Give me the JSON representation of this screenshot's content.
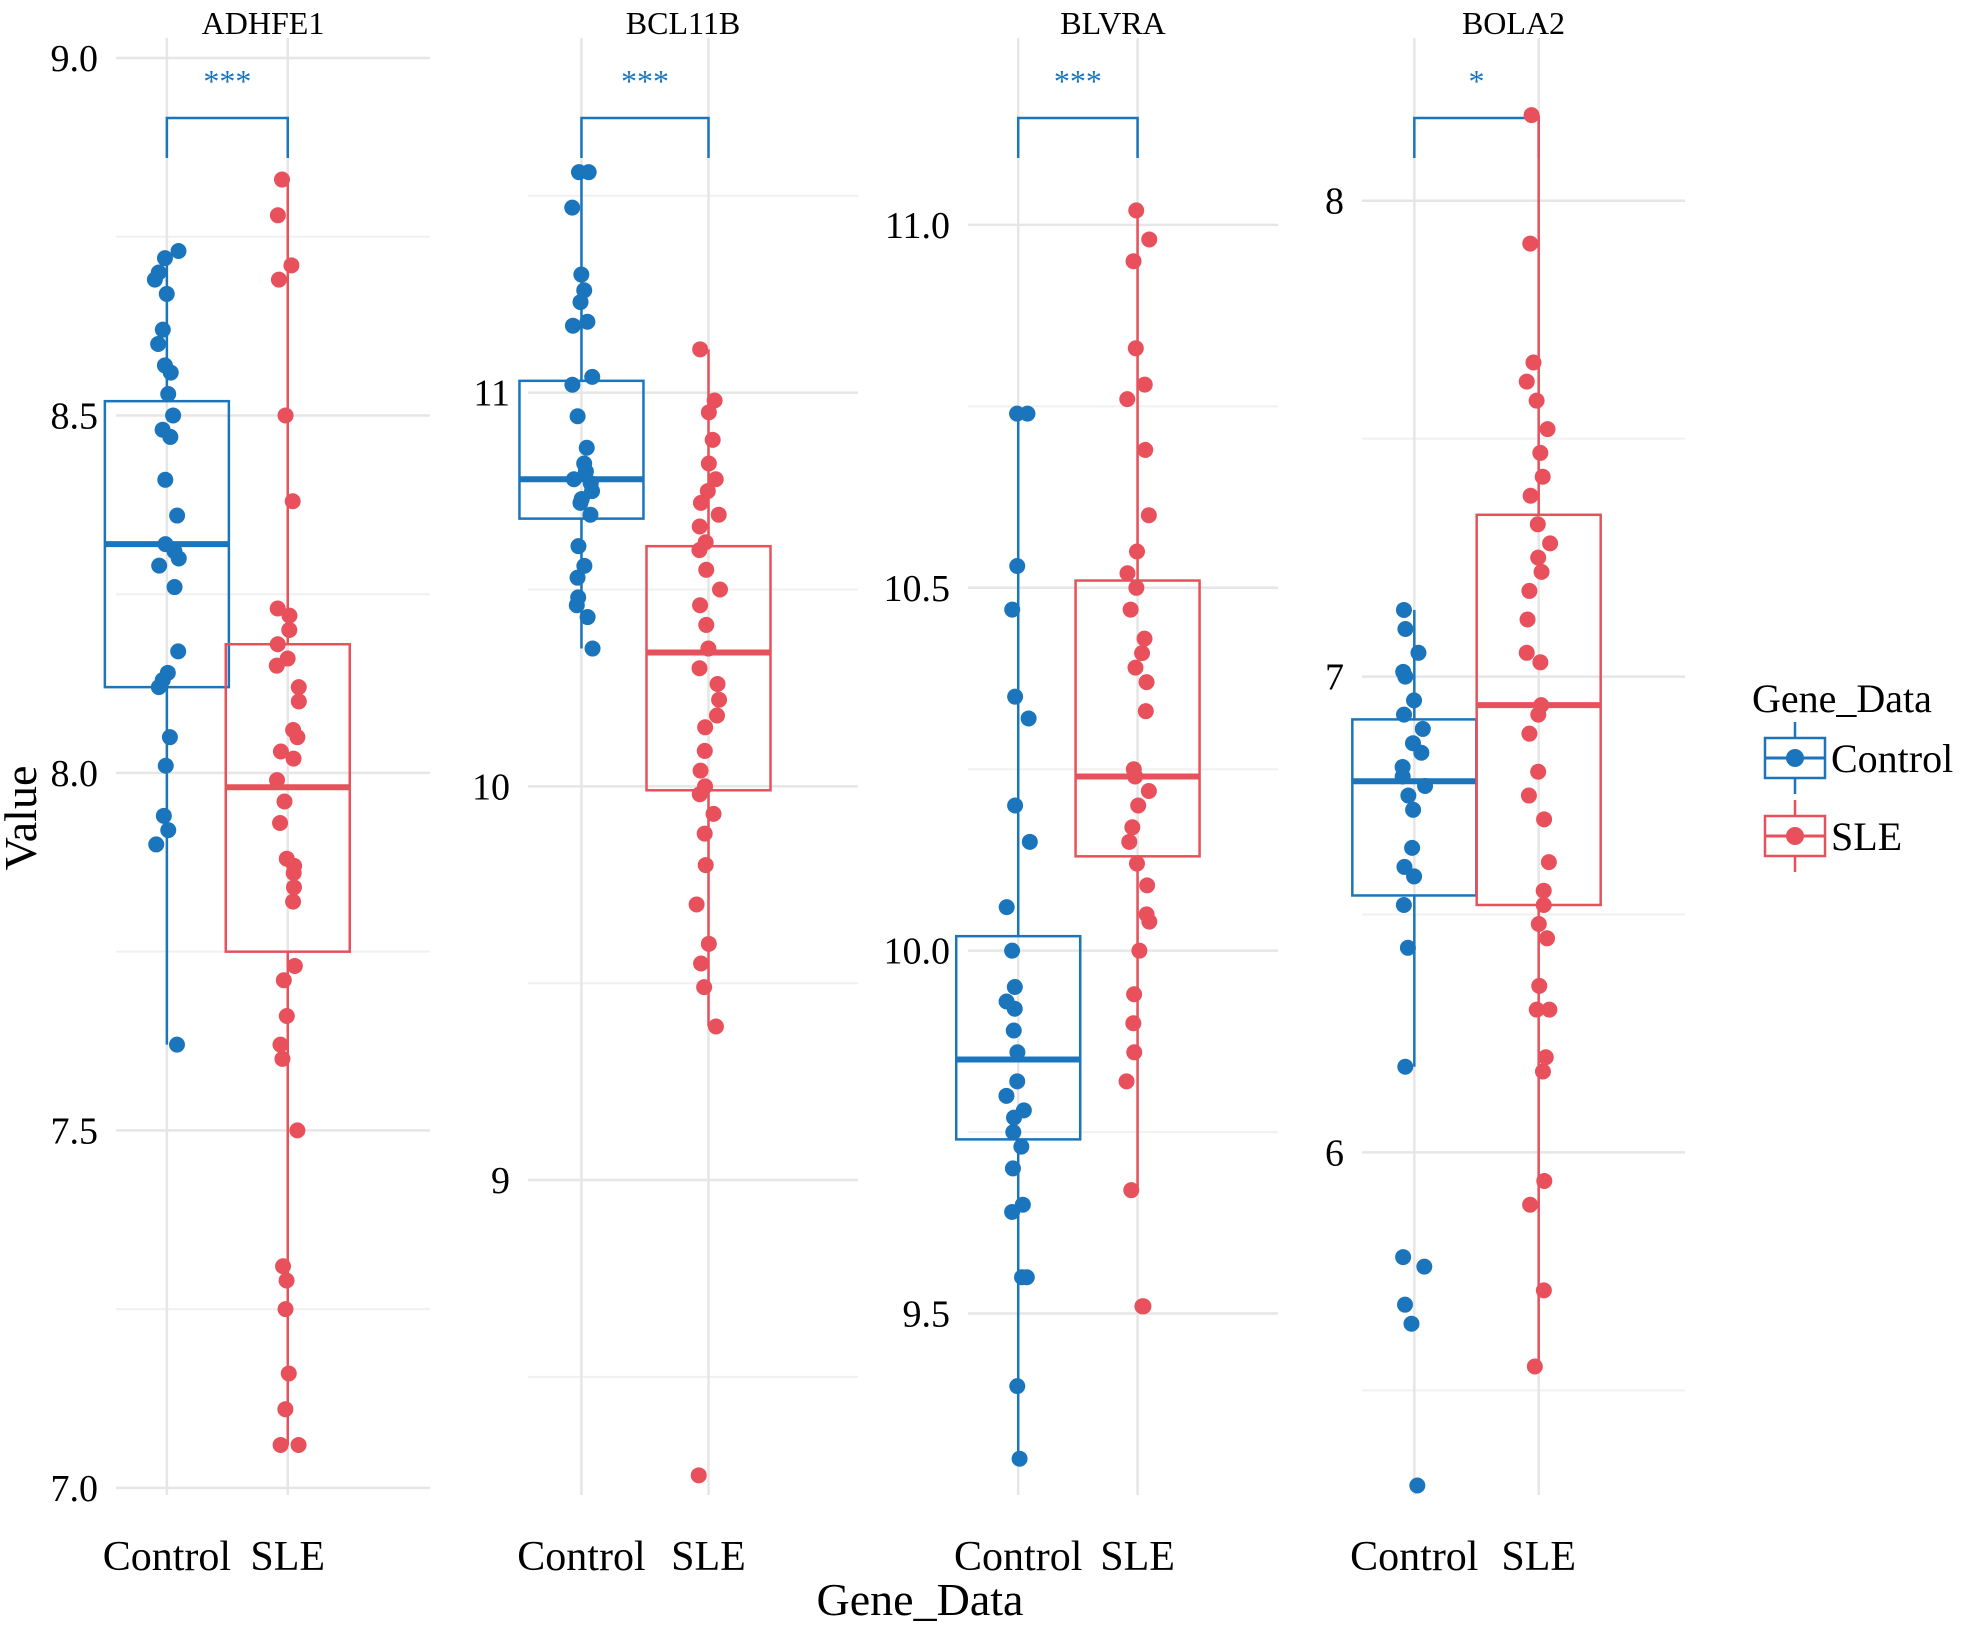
{
  "chart_data": {
    "type": "box",
    "xlabel": "Gene_Data",
    "ylabel": "Value",
    "legend": {
      "title": "Gene_Data",
      "position": "right",
      "entries": [
        {
          "name": "Control",
          "color": "#1b75bc"
        },
        {
          "name": "SLE",
          "color": "#e8505b"
        }
      ]
    },
    "categories": [
      "Control",
      "SLE"
    ],
    "colors": {
      "Control": "#1b75bc",
      "SLE": "#e8505b"
    },
    "grid": true,
    "panels": [
      {
        "title": "ADHFE1",
        "significance": "***",
        "ylim": [
          6.99,
          9.0
        ],
        "yticks": [
          7.0,
          7.5,
          8.0,
          8.5,
          9.0
        ],
        "ytick_labels": [
          "7.0",
          "7.5",
          "8.0",
          "8.5",
          "9.0"
        ],
        "groups": [
          {
            "name": "Control",
            "q1": 8.12,
            "median": 8.32,
            "q3": 8.52,
            "whisker_low": 7.62,
            "whisker_high": 8.73,
            "points": [
              7.62,
              7.9,
              7.92,
              7.94,
              8.01,
              8.05,
              8.12,
              8.13,
              8.14,
              8.17,
              8.26,
              8.29,
              8.3,
              8.31,
              8.32,
              8.36,
              8.41,
              8.47,
              8.48,
              8.5,
              8.53,
              8.56,
              8.57,
              8.6,
              8.62,
              8.67,
              8.69,
              8.7,
              8.72,
              8.73
            ]
          },
          {
            "name": "SLE",
            "q1": 7.75,
            "median": 7.98,
            "q3": 8.18,
            "whisker_low": 7.06,
            "whisker_high": 8.83,
            "points": [
              7.06,
              7.06,
              7.11,
              7.16,
              7.25,
              7.29,
              7.31,
              7.5,
              7.6,
              7.62,
              7.66,
              7.71,
              7.73,
              7.82,
              7.84,
              7.86,
              7.87,
              7.88,
              7.93,
              7.96,
              7.99,
              8.02,
              8.03,
              8.05,
              8.06,
              8.1,
              8.12,
              8.15,
              8.16,
              8.18,
              8.2,
              8.22,
              8.23,
              8.38,
              8.5,
              8.69,
              8.71,
              8.78,
              8.83
            ]
          }
        ]
      },
      {
        "title": "BCL11B",
        "significance": "***",
        "ylim": [
          8.2,
          11.85
        ],
        "yticks": [
          9,
          10,
          11
        ],
        "ytick_labels": [
          "9",
          "10",
          "11"
        ],
        "groups": [
          {
            "name": "Control",
            "q1": 10.68,
            "median": 10.78,
            "q3": 11.03,
            "whisker_low": 10.35,
            "whisker_high": 11.55,
            "points": [
              10.35,
              10.43,
              10.46,
              10.48,
              10.53,
              10.56,
              10.61,
              10.69,
              10.72,
              10.73,
              10.75,
              10.77,
              10.78,
              10.8,
              10.82,
              10.86,
              10.94,
              11.02,
              11.04,
              11.17,
              11.18,
              11.23,
              11.26,
              11.3,
              11.47,
              11.56,
              11.56
            ]
          },
          {
            "name": "SLE",
            "q1": 9.99,
            "median": 10.34,
            "q3": 10.61,
            "whisker_low": 9.39,
            "whisker_high": 11.11,
            "points": [
              8.25,
              9.39,
              9.49,
              9.55,
              9.6,
              9.7,
              9.8,
              9.88,
              9.93,
              9.98,
              10.0,
              10.04,
              10.09,
              10.15,
              10.18,
              10.22,
              10.26,
              10.3,
              10.35,
              10.41,
              10.46,
              10.5,
              10.55,
              10.6,
              10.62,
              10.66,
              10.69,
              10.72,
              10.75,
              10.78,
              10.82,
              10.88,
              10.95,
              10.98,
              11.11
            ]
          }
        ]
      },
      {
        "title": "BLVRA",
        "significance": "***",
        "ylim": [
          9.25,
          11.23
        ],
        "yticks": [
          9.5,
          10.0,
          10.5,
          11.0
        ],
        "ytick_labels": [
          "9.5",
          "10.0",
          "10.5",
          "11.0"
        ],
        "groups": [
          {
            "name": "Control",
            "q1": 9.74,
            "median": 9.85,
            "q3": 10.02,
            "whisker_low": 9.3,
            "whisker_high": 10.74,
            "points": [
              9.3,
              9.4,
              9.55,
              9.55,
              9.64,
              9.65,
              9.7,
              9.73,
              9.75,
              9.77,
              9.78,
              9.8,
              9.82,
              9.86,
              9.89,
              9.92,
              9.93,
              9.95,
              10.0,
              10.06,
              10.15,
              10.2,
              10.32,
              10.35,
              10.47,
              10.53,
              10.74,
              10.74
            ]
          },
          {
            "name": "SLE",
            "q1": 10.13,
            "median": 10.24,
            "q3": 10.51,
            "whisker_low": 9.67,
            "whisker_high": 11.02,
            "points": [
              9.51,
              9.51,
              9.67,
              9.82,
              9.86,
              9.9,
              9.94,
              10.0,
              10.04,
              10.05,
              10.09,
              10.12,
              10.15,
              10.17,
              10.2,
              10.22,
              10.24,
              10.25,
              10.33,
              10.37,
              10.39,
              10.41,
              10.43,
              10.47,
              10.5,
              10.52,
              10.55,
              10.6,
              10.69,
              10.76,
              10.78,
              10.83,
              10.95,
              10.98,
              11.02
            ]
          }
        ]
      },
      {
        "title": "BOLA2",
        "significance": "*",
        "ylim": [
          5.28,
          8.3
        ],
        "yticks": [
          6,
          7,
          8
        ],
        "ytick_labels": [
          "6",
          "7",
          "8"
        ],
        "groups": [
          {
            "name": "Control",
            "q1": 6.54,
            "median": 6.78,
            "q3": 6.91,
            "whisker_low": 6.18,
            "whisker_high": 7.14,
            "points": [
              5.3,
              5.64,
              5.68,
              5.76,
              5.78,
              6.18,
              6.43,
              6.52,
              6.58,
              6.6,
              6.64,
              6.72,
              6.75,
              6.77,
              6.79,
              6.81,
              6.84,
              6.86,
              6.89,
              6.92,
              6.95,
              7.0,
              7.01,
              7.05,
              7.1,
              7.14
            ]
          },
          {
            "name": "SLE",
            "q1": 6.52,
            "median": 6.94,
            "q3": 7.34,
            "whisker_low": 5.55,
            "whisker_high": 8.18,
            "points": [
              5.55,
              5.71,
              5.89,
              5.94,
              6.17,
              6.2,
              6.3,
              6.3,
              6.35,
              6.45,
              6.48,
              6.52,
              6.55,
              6.61,
              6.7,
              6.75,
              6.8,
              6.88,
              6.92,
              6.94,
              7.03,
              7.05,
              7.12,
              7.18,
              7.22,
              7.25,
              7.28,
              7.32,
              7.38,
              7.42,
              7.47,
              7.52,
              7.58,
              7.62,
              7.66,
              7.91,
              8.18
            ]
          }
        ]
      }
    ]
  }
}
